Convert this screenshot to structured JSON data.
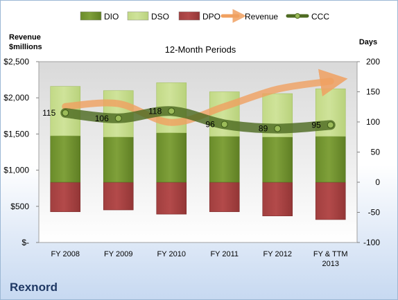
{
  "company": "Rexnord",
  "colors": {
    "dio": "#7fa03a",
    "dso": "#cfe39a",
    "dpo": "#b34a4a",
    "revenue": "#f0a060",
    "ccc": "#4e6b22"
  },
  "chart_data": {
    "type": "bar",
    "title": "12-Month Periods",
    "left_axis": {
      "label_line1": "Revenue",
      "label_line2": "$millions",
      "ticks": [
        "$-",
        "$500",
        "$1,000",
        "$1,500",
        "$2,000",
        "$2,500"
      ],
      "range": [
        0,
        2500
      ]
    },
    "right_axis": {
      "label": "Days",
      "ticks": [
        "-100",
        "-50",
        "0",
        "50",
        "100",
        "150",
        "200"
      ],
      "range": [
        -100,
        200
      ]
    },
    "categories": [
      [
        "FY 2008"
      ],
      [
        "FY 2009"
      ],
      [
        "FY 2010"
      ],
      [
        "FY 2011"
      ],
      [
        "FY 2012"
      ],
      [
        "FY & TTM",
        "2013"
      ]
    ],
    "legend": [
      "DIO",
      "DSO",
      "DPO",
      "Revenue",
      "CCC"
    ],
    "series": [
      {
        "name": "DIO",
        "type": "stacked-bar",
        "axis": "right",
        "values": [
          77,
          75,
          82,
          76,
          75,
          76
        ]
      },
      {
        "name": "DSO",
        "type": "stacked-bar",
        "axis": "right",
        "values": [
          82,
          77,
          83,
          74,
          72,
          79
        ]
      },
      {
        "name": "DPO",
        "type": "bar-below-zero",
        "axis": "right",
        "values": [
          -49,
          -46,
          -53,
          -49,
          -56,
          -62
        ]
      },
      {
        "name": "Revenue",
        "type": "line-arrow",
        "axis": "left",
        "values": [
          1880,
          1920,
          1660,
          1880,
          2120,
          2230
        ]
      },
      {
        "name": "CCC",
        "type": "line-markers",
        "axis": "right",
        "values": [
          115,
          106,
          118,
          96,
          89,
          95
        ],
        "labels": [
          "115",
          "106",
          "118",
          "96",
          "89",
          "95"
        ]
      }
    ]
  }
}
